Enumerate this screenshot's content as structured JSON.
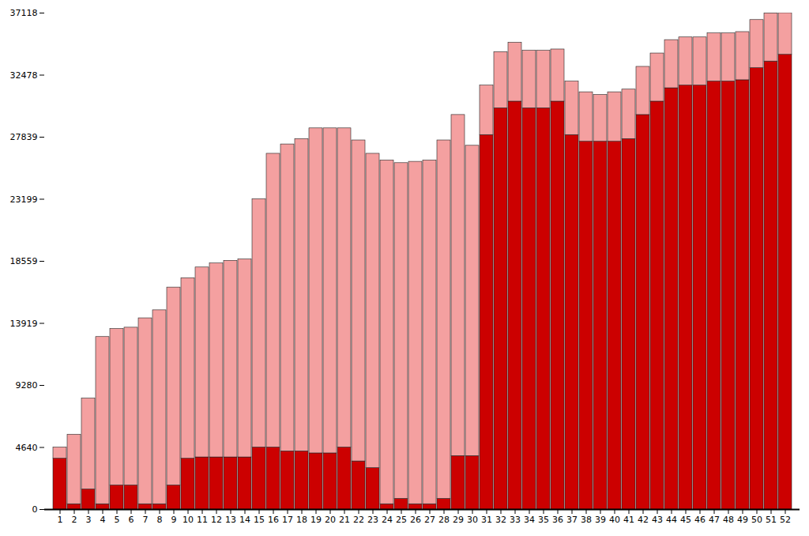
{
  "chart_data": {
    "type": "bar",
    "stacked": true,
    "grid": false,
    "categories": [
      1,
      2,
      3,
      4,
      5,
      6,
      7,
      8,
      9,
      10,
      11,
      12,
      13,
      14,
      15,
      16,
      17,
      18,
      19,
      20,
      21,
      22,
      23,
      24,
      25,
      26,
      27,
      28,
      29,
      30,
      31,
      32,
      33,
      34,
      35,
      36,
      37,
      38,
      39,
      40,
      41,
      42,
      43,
      44,
      45,
      46,
      47,
      48,
      49,
      50,
      51,
      52
    ],
    "series": [
      {
        "color": "#cc0000",
        "values": [
          3800,
          400,
          1500,
          400,
          1800,
          1800,
          400,
          400,
          1800,
          3800,
          3900,
          3900,
          3900,
          3900,
          4640,
          4640,
          4350,
          4350,
          4200,
          4200,
          4640,
          3600,
          3100,
          400,
          800,
          400,
          400,
          800,
          4000,
          4000,
          28000,
          30000,
          30500,
          30000,
          30000,
          30500,
          28000,
          27500,
          27500,
          27500,
          27700,
          29500,
          30500,
          31500,
          31700,
          31700,
          32000,
          32000,
          32100,
          33000,
          33500,
          34000
        ]
      },
      {
        "color": "#f4a0a0",
        "values": [
          840,
          5200,
          6800,
          12500,
          11700,
          11800,
          13900,
          14500,
          14800,
          13500,
          14200,
          14500,
          14700,
          14800,
          18560,
          21960,
          22950,
          23350,
          24300,
          24300,
          23860,
          24000,
          23500,
          25700,
          25100,
          25600,
          25700,
          26800,
          25500,
          23200,
          3700,
          4200,
          4400,
          4300,
          4300,
          3900,
          4000,
          3700,
          3500,
          3700,
          3700,
          3600,
          3600,
          3600,
          3600,
          3600,
          3600,
          3600,
          3600,
          3600,
          3600,
          3118
        ]
      }
    ],
    "ylim": [
      0,
      37118
    ],
    "yticks": [
      0,
      4640,
      9280,
      13919,
      18559,
      23199,
      27839,
      32478,
      37118
    ]
  }
}
